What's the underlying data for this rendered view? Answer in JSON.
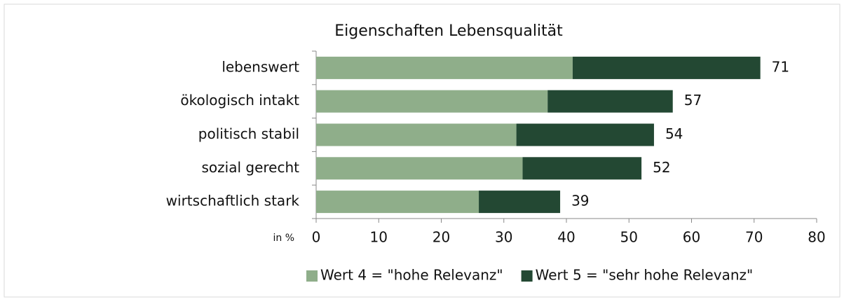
{
  "chart_data": {
    "type": "stacked-bar-horizontal",
    "title": "Eigenschaften Lebensqualität",
    "x_label": "in %",
    "categories": [
      "lebenswert",
      "ökologisch intakt",
      "politisch stabil",
      "sozial gerecht",
      "wirtschaftlich stark"
    ],
    "series": [
      {
        "name": "Wert 4 = \"hohe Relevanz\"",
        "color": "#8fae8a",
        "values": [
          41,
          37,
          32,
          33,
          26
        ]
      },
      {
        "name": "Wert 5 = \"sehr hohe Relevanz\"",
        "color": "#234833",
        "values": [
          30,
          20,
          22,
          19,
          13
        ]
      }
    ],
    "totals": [
      71,
      57,
      54,
      52,
      39
    ],
    "xlim": [
      0,
      80
    ],
    "xticks": [
      0,
      10,
      20,
      30,
      40,
      50,
      60,
      70,
      80
    ],
    "legend": "bottom"
  }
}
